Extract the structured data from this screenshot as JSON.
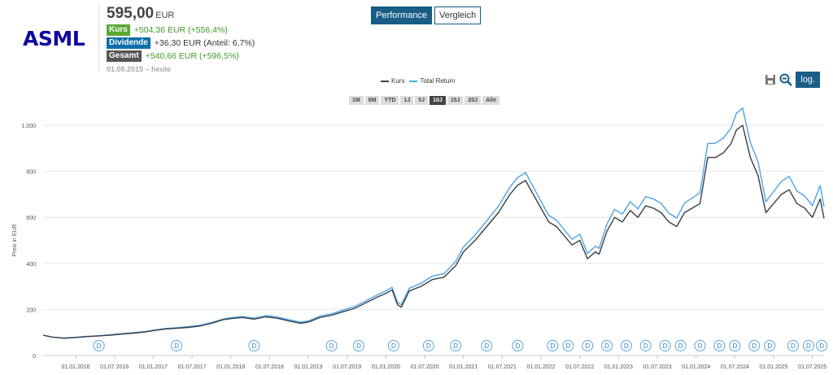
{
  "header": {
    "logo": "ASML",
    "price": "595,00",
    "currency": "EUR",
    "kurs_label": "Kurs",
    "kurs_value": "+504,36 EUR (+556,4%)",
    "dividende_label": "Dividende",
    "dividende_value": "+36,30 EUR (Anteil: 6,7%)",
    "gesamt_label": "Gesamt",
    "gesamt_value": "+540,66 EUR (+596,5%)",
    "period": "01.08.2015 – heute"
  },
  "tabs": {
    "performance": "Performance",
    "vergleich": "Vergleich"
  },
  "legend": {
    "kurs": "Kurs",
    "total_return": "Total Return"
  },
  "ranges": [
    "1M",
    "6M",
    "YTD",
    "1J",
    "5J",
    "10J",
    "15J",
    "20J",
    "Alle"
  ],
  "active_range": "10J",
  "log_label": "log.",
  "dividend_marker": "D",
  "colors": {
    "kurs": "#3a3f47",
    "total_return": "#4da3e8",
    "accent": "#1a5d87",
    "marker": "#5aa6e0"
  },
  "chart_data": {
    "type": "line",
    "ylabel": "Preis in EUR",
    "ylim": [
      0,
      1000
    ],
    "yticks": [
      0,
      200,
      400,
      600,
      800,
      1000
    ],
    "ytick_labels": [
      "0",
      "200",
      "400",
      "600",
      "800",
      "1.000"
    ],
    "xlim": [
      2015.58,
      2025.65
    ],
    "xticks": [
      2016.0,
      2016.5,
      2017.0,
      2017.5,
      2018.0,
      2018.5,
      2019.0,
      2019.5,
      2020.0,
      2020.5,
      2021.0,
      2021.5,
      2022.0,
      2022.5,
      2023.0,
      2023.5,
      2024.0,
      2024.5,
      2025.0,
      2025.5
    ],
    "xtick_labels": [
      "01.01.2016",
      "01.07.2016",
      "01.01.2017",
      "01.07.2017",
      "01.01.2018",
      "01.07.2018",
      "01.01.2019",
      "01.07.2019",
      "01.01.2020",
      "01.07.2020",
      "01.01.2021",
      "01.07.2021",
      "01.01.2022",
      "01.07.2022",
      "01.01.2023",
      "01.07.2023",
      "01.01.2024",
      "01.07.2024",
      "01.01.2025",
      "01.07.2025"
    ],
    "dividend_dates": [
      2016.3,
      2017.3,
      2018.3,
      2019.3,
      2019.65,
      2020.1,
      2020.55,
      2020.9,
      2021.3,
      2021.7,
      2022.15,
      2022.35,
      2022.6,
      2022.85,
      2023.1,
      2023.35,
      2023.6,
      2023.8,
      2024.05,
      2024.3,
      2024.5,
      2024.75,
      2024.95,
      2025.25,
      2025.45,
      2025.62
    ],
    "series": [
      {
        "name": "Kurs",
        "x": [
          2015.58,
          2015.7,
          2015.85,
          2016.0,
          2016.15,
          2016.3,
          2016.45,
          2016.6,
          2016.75,
          2016.9,
          2017.0,
          2017.15,
          2017.3,
          2017.45,
          2017.6,
          2017.75,
          2017.9,
          2018.0,
          2018.15,
          2018.3,
          2018.45,
          2018.6,
          2018.75,
          2018.9,
          2019.0,
          2019.15,
          2019.3,
          2019.45,
          2019.6,
          2019.75,
          2019.9,
          2020.0,
          2020.08,
          2020.15,
          2020.2,
          2020.3,
          2020.45,
          2020.6,
          2020.75,
          2020.9,
          2021.0,
          2021.15,
          2021.3,
          2021.45,
          2021.6,
          2021.7,
          2021.8,
          2021.9,
          2022.0,
          2022.1,
          2022.2,
          2022.3,
          2022.4,
          2022.5,
          2022.6,
          2022.7,
          2022.75,
          2022.85,
          2022.95,
          2023.05,
          2023.15,
          2023.25,
          2023.35,
          2023.45,
          2023.55,
          2023.65,
          2023.75,
          2023.85,
          2023.95,
          2024.05,
          2024.15,
          2024.25,
          2024.35,
          2024.45,
          2024.52,
          2024.6,
          2024.7,
          2024.8,
          2024.9,
          2025.0,
          2025.1,
          2025.2,
          2025.3,
          2025.4,
          2025.5,
          2025.6,
          2025.65
        ],
        "values": [
          88,
          80,
          75,
          78,
          82,
          85,
          88,
          93,
          97,
          102,
          108,
          115,
          118,
          122,
          128,
          140,
          155,
          160,
          165,
          158,
          168,
          162,
          150,
          140,
          145,
          165,
          175,
          190,
          205,
          230,
          255,
          270,
          285,
          220,
          210,
          280,
          300,
          330,
          340,
          390,
          450,
          500,
          560,
          620,
          700,
          740,
          760,
          700,
          640,
          580,
          560,
          520,
          480,
          500,
          420,
          450,
          440,
          540,
          600,
          580,
          630,
          600,
          650,
          640,
          620,
          580,
          560,
          620,
          640,
          660,
          860,
          860,
          880,
          920,
          980,
          1000,
          860,
          780,
          620,
          660,
          700,
          720,
          660,
          640,
          600,
          680,
          595
        ]
      },
      {
        "name": "Total Return",
        "x": [
          2015.58,
          2015.7,
          2015.85,
          2016.0,
          2016.15,
          2016.3,
          2016.45,
          2016.6,
          2016.75,
          2016.9,
          2017.0,
          2017.15,
          2017.3,
          2017.45,
          2017.6,
          2017.75,
          2017.9,
          2018.0,
          2018.15,
          2018.3,
          2018.45,
          2018.6,
          2018.75,
          2018.9,
          2019.0,
          2019.15,
          2019.3,
          2019.45,
          2019.6,
          2019.75,
          2019.9,
          2020.0,
          2020.08,
          2020.15,
          2020.2,
          2020.3,
          2020.45,
          2020.6,
          2020.75,
          2020.9,
          2021.0,
          2021.15,
          2021.3,
          2021.45,
          2021.6,
          2021.7,
          2021.8,
          2021.9,
          2022.0,
          2022.1,
          2022.2,
          2022.3,
          2022.4,
          2022.5,
          2022.6,
          2022.7,
          2022.75,
          2022.85,
          2022.95,
          2023.05,
          2023.15,
          2023.25,
          2023.35,
          2023.45,
          2023.55,
          2023.65,
          2023.75,
          2023.85,
          2023.95,
          2024.05,
          2024.15,
          2024.25,
          2024.35,
          2024.45,
          2024.52,
          2024.6,
          2024.7,
          2024.8,
          2024.9,
          2025.0,
          2025.1,
          2025.2,
          2025.3,
          2025.4,
          2025.5,
          2025.6,
          2025.65
        ],
        "values": [
          88,
          80,
          76,
          79,
          83,
          86,
          90,
          95,
          99,
          104,
          110,
          117,
          121,
          125,
          131,
          143,
          158,
          164,
          169,
          162,
          173,
          167,
          155,
          145,
          150,
          171,
          181,
          197,
          213,
          239,
          265,
          281,
          296,
          230,
          220,
          292,
          313,
          345,
          356,
          408,
          471,
          523,
          585,
          648,
          731,
          773,
          795,
          732,
          670,
          608,
          588,
          546,
          505,
          527,
          443,
          475,
          465,
          571,
          635,
          614,
          668,
          637,
          690,
          680,
          660,
          618,
          597,
          662,
          684,
          706,
          920,
          922,
          944,
          987,
          1052,
          1075,
          925,
          840,
          668,
          712,
          756,
          778,
          714,
          693,
          651,
          738,
          646
        ]
      }
    ]
  }
}
